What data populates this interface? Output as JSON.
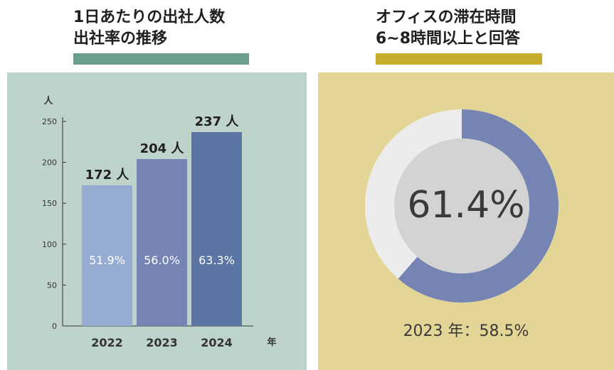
{
  "colors": {
    "left_underline": "#6aa08c",
    "right_underline": "#c6ad2c",
    "left_panel_bg": "#bed4ca",
    "right_panel_bg": "#e3d596",
    "bar_2022": "#97acd2",
    "bar_2023": "#7584b3",
    "bar_2024": "#5b76a5",
    "donut_fill": "#7584b3",
    "donut_track": "#ececec",
    "donut_center": "#d3d3d3"
  },
  "left_chart": {
    "title_line1": "1日あたりの出社人数",
    "title_line2": "出社率の推移"
  },
  "right_chart": {
    "title_line1": "オフィスの滞在時間",
    "title_line2": "6~8時間以上と回答",
    "center_text": "61.4%",
    "footer": "2023 年：58.5%"
  },
  "chart_data": [
    {
      "type": "bar",
      "ylabel": "人",
      "xlabel": "年",
      "ylim": [
        0,
        250
      ],
      "yticks": [
        0,
        50,
        100,
        150,
        200,
        250
      ],
      "categories": [
        "2022",
        "2023",
        "2024"
      ],
      "values": [
        172,
        204,
        237
      ],
      "value_labels": [
        "172 人",
        "204 人",
        "237 人"
      ],
      "inner_labels": [
        "51.9%",
        "56.0%",
        "63.3%"
      ]
    },
    {
      "type": "pie",
      "donut": true,
      "values": [
        61.4,
        38.6
      ],
      "center_label": "61.4%",
      "footer": "2023 年：58.5%"
    }
  ]
}
